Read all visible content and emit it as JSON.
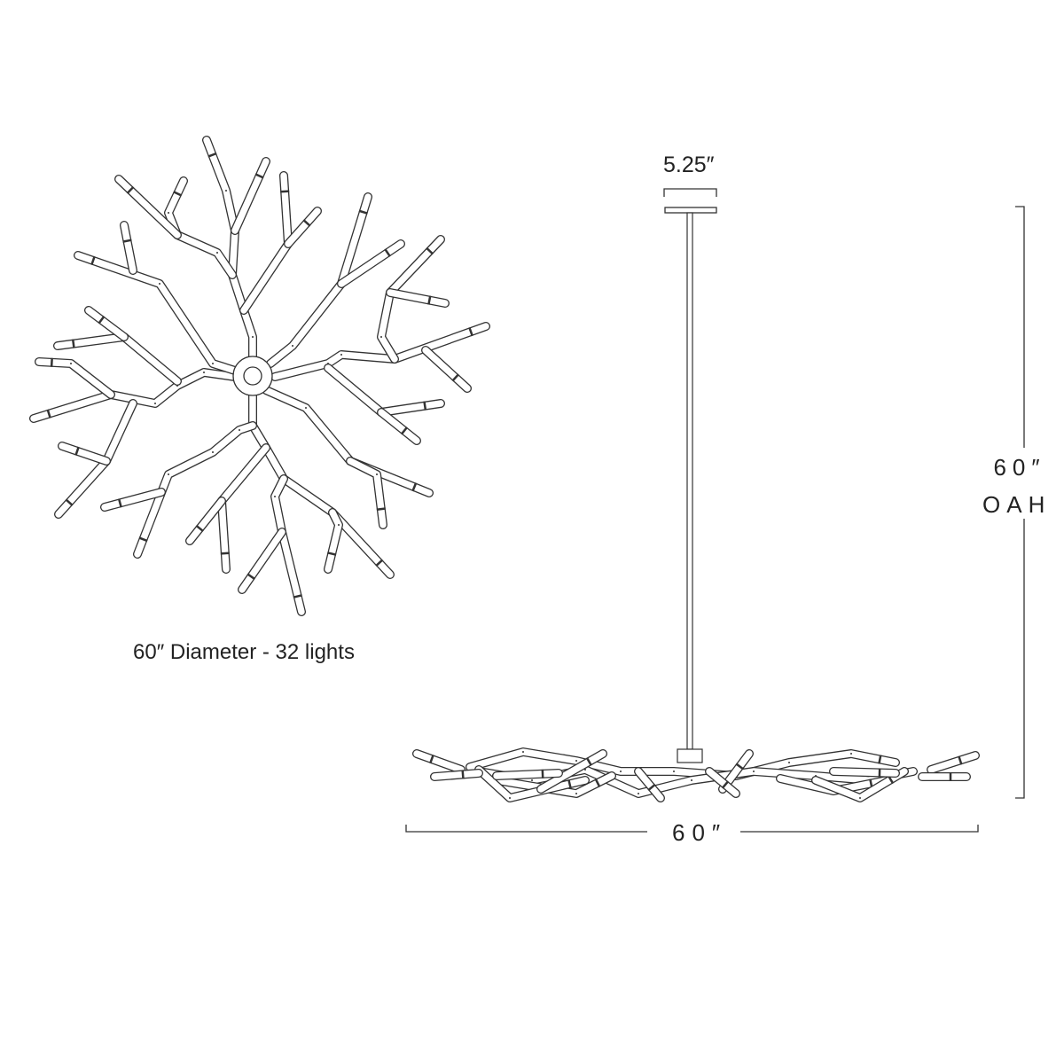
{
  "top_view": {
    "caption": "60″ Diameter - 32 lights"
  },
  "side_view": {
    "canopy_width": "5.25″",
    "overall_height": "60″",
    "overall_height_label": "OAH",
    "width": "60″"
  },
  "colors": {
    "line": "#333333",
    "background": "#ffffff"
  }
}
